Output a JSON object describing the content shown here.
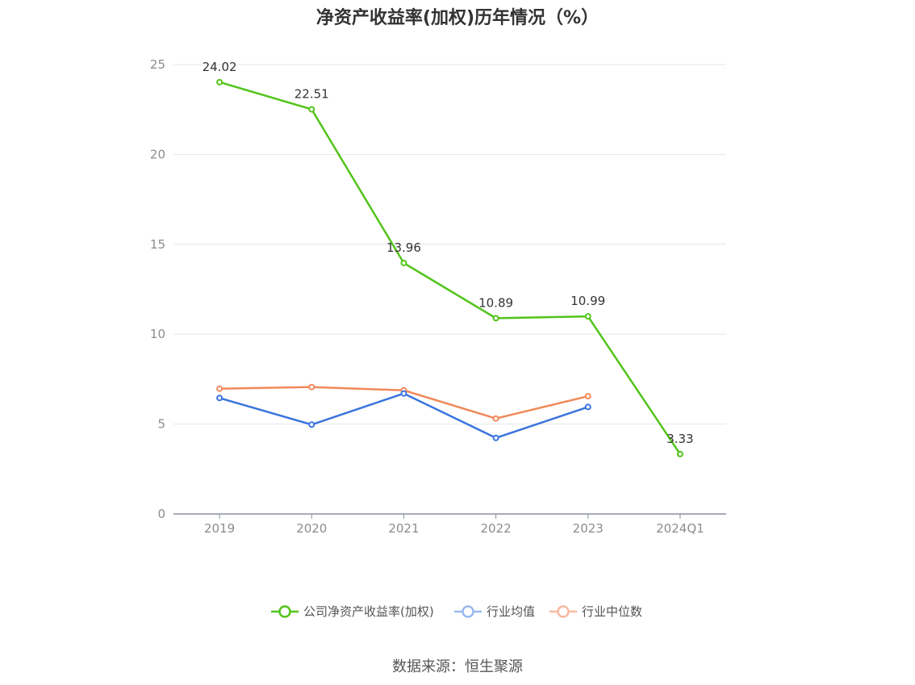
{
  "chart_data": {
    "type": "line",
    "title": "净资产收益率(加权)历年情况（%）",
    "categories": [
      "2019",
      "2020",
      "2021",
      "2022",
      "2023",
      "2024Q1"
    ],
    "ylim": [
      0,
      25
    ],
    "yticks": [
      0,
      5,
      10,
      15,
      20,
      25
    ],
    "grid": true,
    "legend_position": "bottom",
    "series": [
      {
        "name": "公司净资产收益率(加权)",
        "color": "#52c41a",
        "values": [
          24.02,
          22.51,
          13.96,
          10.89,
          10.99,
          3.33
        ],
        "show_labels": true
      },
      {
        "name": "行业均值",
        "color": "#3a75dd",
        "values": [
          6.45,
          4.97,
          6.7,
          4.23,
          5.95,
          null
        ],
        "show_labels": false
      },
      {
        "name": "行业中位数",
        "color": "#f0895a",
        "values": [
          6.97,
          7.06,
          6.88,
          5.31,
          6.55,
          null
        ],
        "show_labels": false
      }
    ],
    "data_labels": [
      "24.02",
      "22.51",
      "13.96",
      "10.89",
      "10.99",
      "3.33"
    ]
  },
  "source": "数据来源：恒生聚源"
}
